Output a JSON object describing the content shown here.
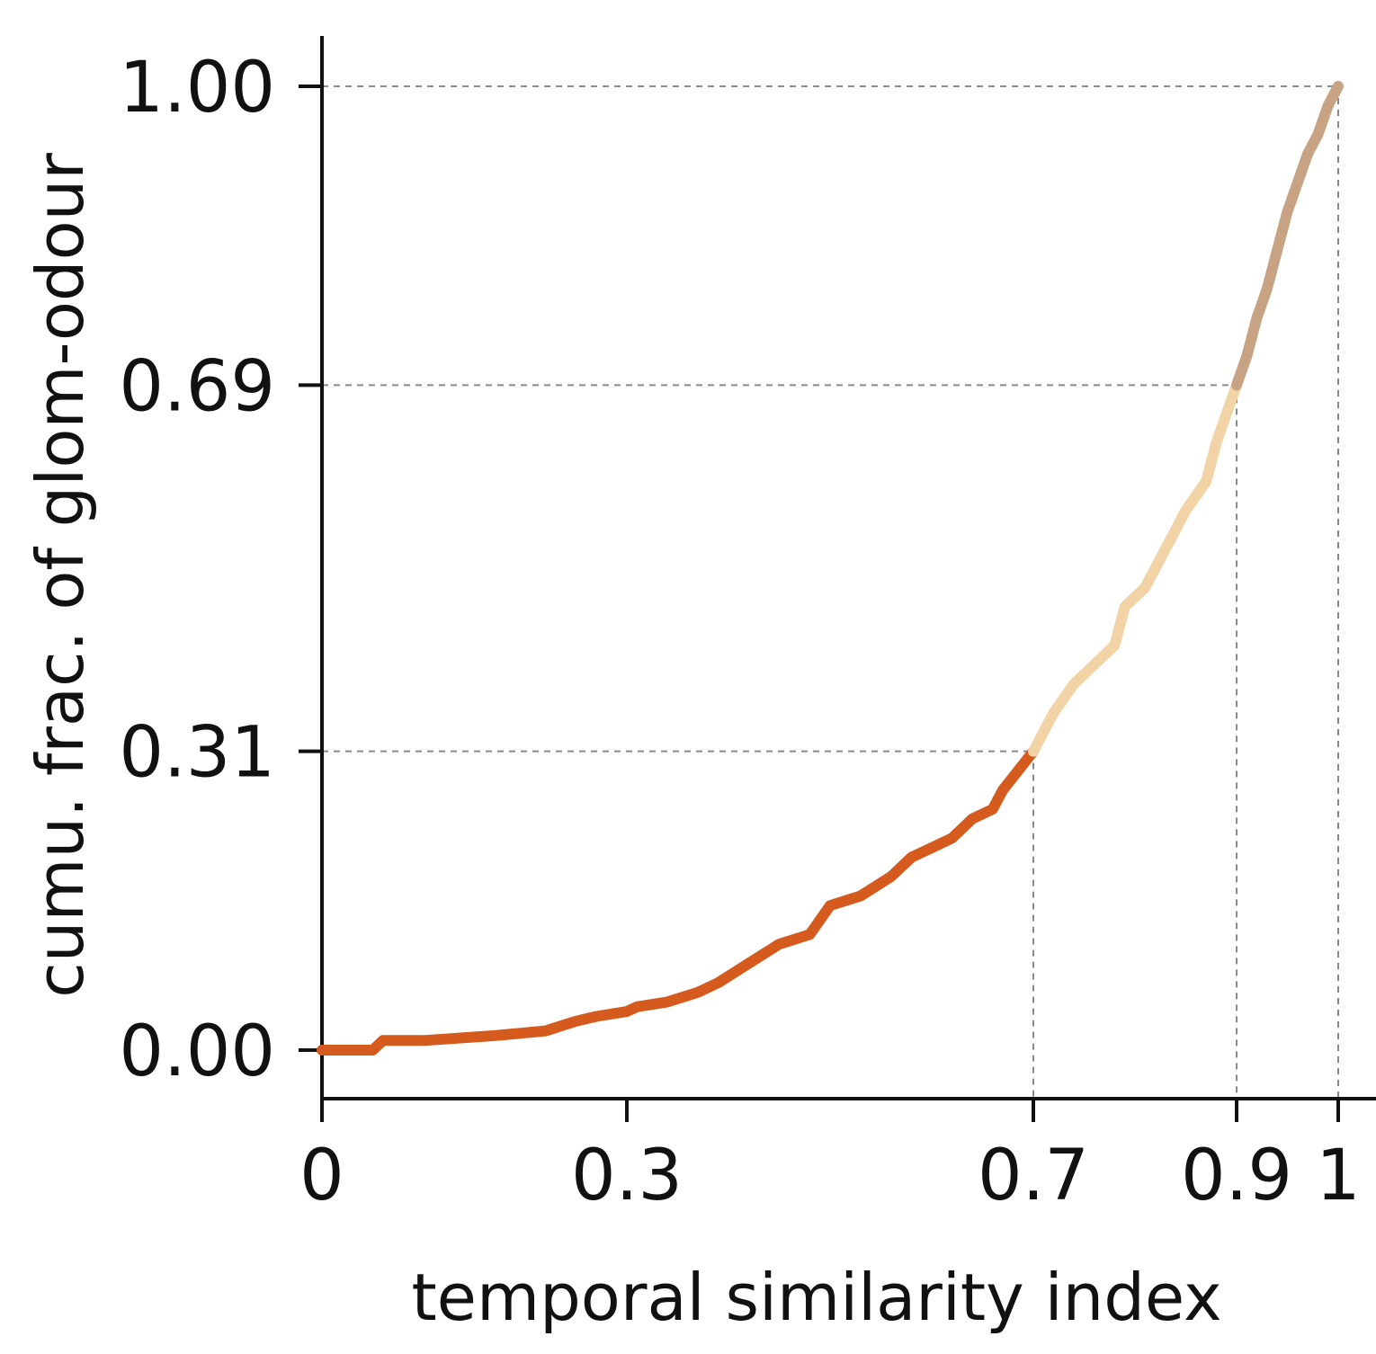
{
  "chart_data": {
    "type": "line",
    "title": "",
    "xlabel": "temporal similarity index",
    "ylabel": "cumu. frac. of glom-odour",
    "xlim": [
      0,
      1
    ],
    "ylim": [
      -0.05,
      1.05
    ],
    "xticks": [
      {
        "value": 0,
        "label": "0"
      },
      {
        "value": 0.3,
        "label": "0.3"
      },
      {
        "value": 0.7,
        "label": "0.7"
      },
      {
        "value": 0.9,
        "label": "0.9"
      },
      {
        "value": 1,
        "label": "1"
      }
    ],
    "yticks": [
      {
        "value": 0.0,
        "label": "0.00"
      },
      {
        "value": 0.31,
        "label": "0.31"
      },
      {
        "value": 0.69,
        "label": "0.69"
      },
      {
        "value": 1.0,
        "label": "1.00"
      }
    ],
    "guide_lines": [
      {
        "x": 0.7,
        "y": 0.31
      },
      {
        "x": 0.9,
        "y": 0.69
      },
      {
        "x": 1.0,
        "y": 1.0
      }
    ],
    "grid": false,
    "segments": [
      {
        "color": "#D45A1E",
        "x": [
          0.0,
          0.05,
          0.06,
          0.1,
          0.17,
          0.22,
          0.25,
          0.27,
          0.3,
          0.31,
          0.34,
          0.37,
          0.39,
          0.42,
          0.45,
          0.48,
          0.5,
          0.53,
          0.56,
          0.58,
          0.6,
          0.62,
          0.64,
          0.66,
          0.67,
          0.7
        ],
        "y": [
          0.0,
          0.0,
          0.01,
          0.01,
          0.015,
          0.02,
          0.03,
          0.035,
          0.04,
          0.045,
          0.05,
          0.06,
          0.07,
          0.09,
          0.11,
          0.12,
          0.15,
          0.16,
          0.18,
          0.2,
          0.21,
          0.22,
          0.24,
          0.25,
          0.27,
          0.31
        ]
      },
      {
        "color": "#F2D3A6",
        "x": [
          0.7,
          0.72,
          0.74,
          0.76,
          0.78,
          0.79,
          0.81,
          0.83,
          0.85,
          0.87,
          0.88,
          0.9
        ],
        "y": [
          0.31,
          0.35,
          0.38,
          0.4,
          0.42,
          0.46,
          0.48,
          0.52,
          0.56,
          0.59,
          0.63,
          0.69
        ]
      },
      {
        "color": "#C7A384",
        "x": [
          0.9,
          0.91,
          0.92,
          0.93,
          0.94,
          0.95,
          0.96,
          0.97,
          0.98,
          0.99,
          1.0
        ],
        "y": [
          0.69,
          0.72,
          0.76,
          0.79,
          0.83,
          0.87,
          0.9,
          0.93,
          0.95,
          0.98,
          1.0
        ]
      }
    ]
  }
}
